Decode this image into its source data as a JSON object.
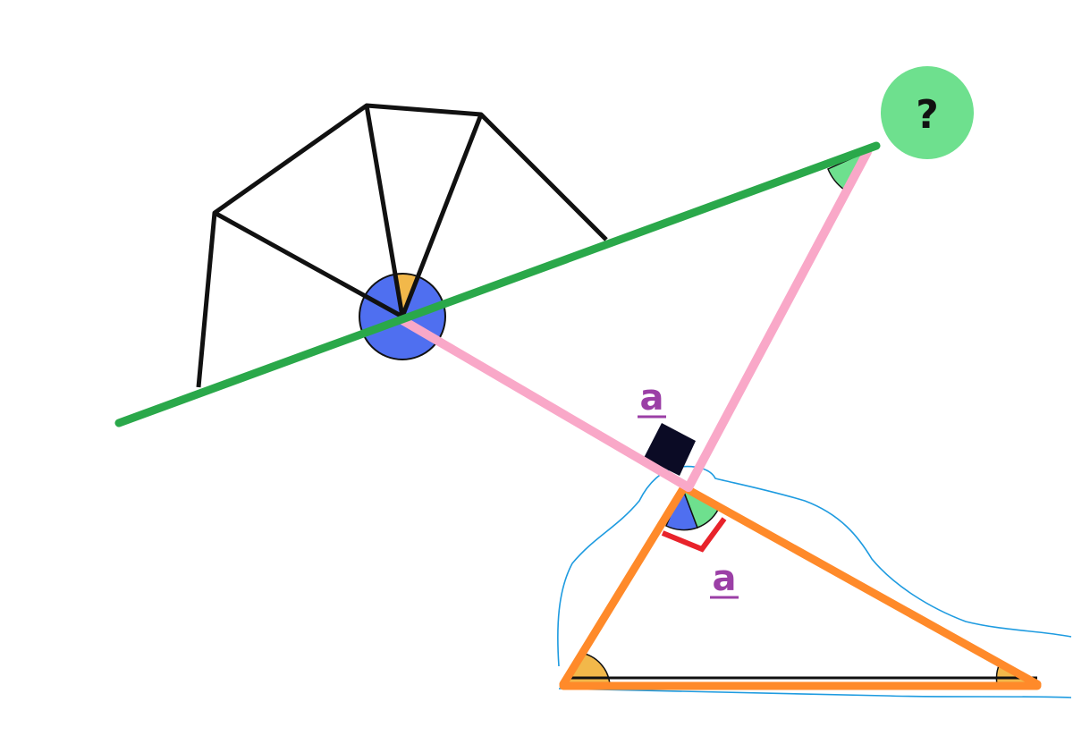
{
  "diagram": {
    "question_badge": {
      "text": "?",
      "fill": "#6ee08e"
    },
    "length_labels": [
      {
        "text": "a",
        "color": "#9b3fa6"
      },
      {
        "text": "a",
        "color": "#9b3fa6"
      }
    ],
    "colors": {
      "green_line": "#2aa84a",
      "pink_line": "#f9a8c8",
      "orange_triangle": "#ff8a2a",
      "black_lines": "#111111",
      "blue_outline": "#1e9be0",
      "angle_blue": "#4f6ff0",
      "angle_yellow": "#f2b84a",
      "angle_green": "#6ee08e",
      "right_angle_red": "#e8232b",
      "right_angle_dark": "#0b0b25"
    }
  }
}
